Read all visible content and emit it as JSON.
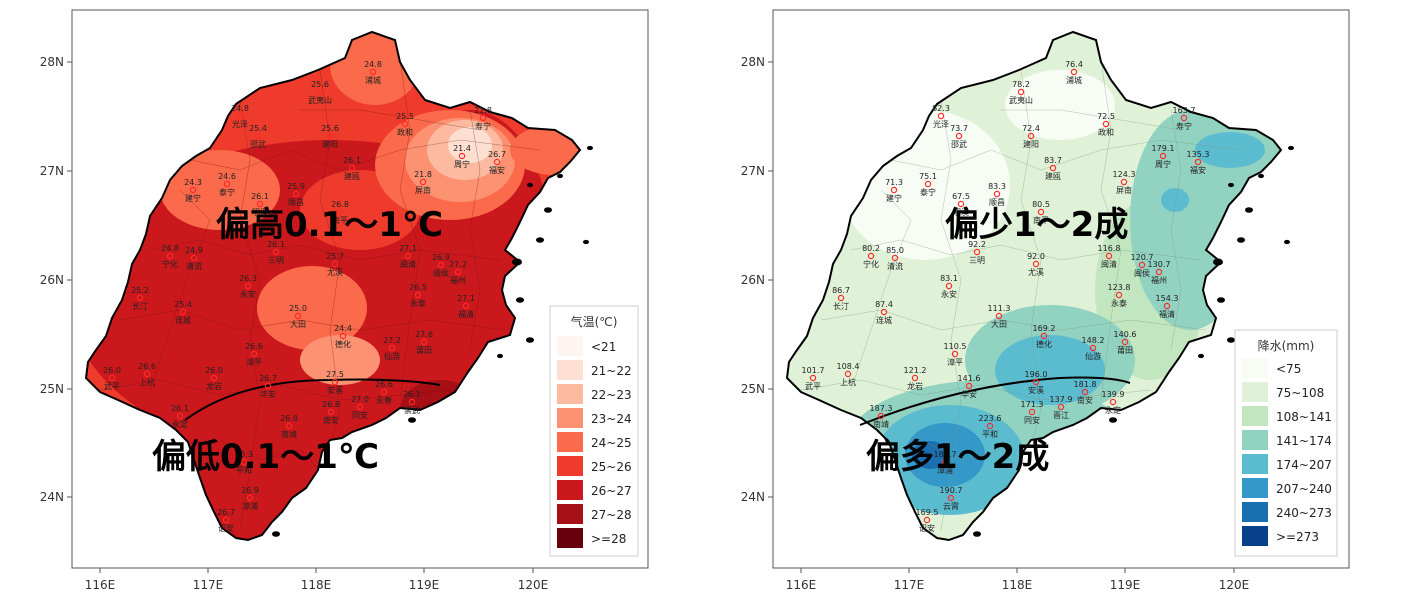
{
  "panels": [
    {
      "id": "temp",
      "legend_title": "气温(℃)",
      "legend": [
        {
          "label": "<21",
          "color": "#fff5f0"
        },
        {
          "label": "21~22",
          "color": "#fee0d2"
        },
        {
          "label": "22~23",
          "color": "#fcbba1"
        },
        {
          "label": "23~24",
          "color": "#fc9272"
        },
        {
          "label": "24~25",
          "color": "#fb6a4a"
        },
        {
          "label": "25~26",
          "color": "#ef3b2c"
        },
        {
          "label": "26~27",
          "color": "#cb181d"
        },
        {
          "label": "27~28",
          "color": "#a50f15"
        },
        {
          "label": ">=28",
          "color": "#67000d"
        }
      ],
      "annotations": [
        "偏高0.1～1℃",
        "偏低0.1～1℃"
      ],
      "x_ticks": [
        "116E",
        "117E",
        "118E",
        "119E",
        "120E"
      ],
      "y_ticks": [
        "28N",
        "27N",
        "26N",
        "25N",
        "24N"
      ],
      "stations": [
        {
          "v": "24.8",
          "n": "浦城"
        },
        {
          "v": "25.6",
          "n": "武夷山"
        },
        {
          "v": "24.8",
          "n": "光泽"
        },
        {
          "v": "25.4",
          "n": "邵武"
        },
        {
          "v": "25.6",
          "n": "建阳"
        },
        {
          "v": "25.5",
          "n": "政和"
        },
        {
          "v": "21.8",
          "n": "寿宁"
        },
        {
          "v": "21.4",
          "n": "周宁"
        },
        {
          "v": "26.7",
          "n": "福安"
        },
        {
          "v": "26.1",
          "n": "建瓯"
        },
        {
          "v": "21.8",
          "n": "屏南"
        },
        {
          "v": "24.3",
          "n": "建宁"
        },
        {
          "v": "24.6",
          "n": "泰宁"
        },
        {
          "v": "26.1",
          "n": "明溪"
        },
        {
          "v": "25.9",
          "n": "顺昌"
        },
        {
          "v": "26.8",
          "n": "南平"
        },
        {
          "v": "24.8",
          "n": "宁化"
        },
        {
          "v": "24.9",
          "n": "清流"
        },
        {
          "v": "26.1",
          "n": "三明"
        },
        {
          "v": "25.7",
          "n": "尤溪"
        },
        {
          "v": "27.1",
          "n": "闽清"
        },
        {
          "v": "26.9",
          "n": "闽侯"
        },
        {
          "v": "27.2",
          "n": "福州"
        },
        {
          "v": "26.3",
          "n": "永安"
        },
        {
          "v": "26.5",
          "n": "永泰"
        },
        {
          "v": "25.2",
          "n": "长汀"
        },
        {
          "v": "25.4",
          "n": "连城"
        },
        {
          "v": "25.0",
          "n": "大田"
        },
        {
          "v": "24.4",
          "n": "德化"
        },
        {
          "v": "27.1",
          "n": "福清"
        },
        {
          "v": "27.2",
          "n": "仙游"
        },
        {
          "v": "27.6",
          "n": "莆田"
        },
        {
          "v": "26.0",
          "n": "武平"
        },
        {
          "v": "26.6",
          "n": "上杭"
        },
        {
          "v": "26.0",
          "n": "龙岩"
        },
        {
          "v": "26.6",
          "n": "漳平"
        },
        {
          "v": "26.7",
          "n": "华安"
        },
        {
          "v": "27.5",
          "n": "安溪"
        },
        {
          "v": "26.6",
          "n": "永春"
        },
        {
          "v": "26.8",
          "n": "南安"
        },
        {
          "v": "27.0",
          "n": "同安"
        },
        {
          "v": "26.1",
          "n": "崇武"
        },
        {
          "v": "26.1",
          "n": "永定"
        },
        {
          "v": "26.8",
          "n": "南靖"
        },
        {
          "v": "26.3",
          "n": "平和"
        },
        {
          "v": "26.9",
          "n": "漳浦"
        },
        {
          "v": "26.7",
          "n": "诏安"
        }
      ]
    },
    {
      "id": "precip",
      "legend_title": "降水(mm)",
      "legend": [
        {
          "label": "<75",
          "color": "#f7fcf5"
        },
        {
          "label": "75~108",
          "color": "#dff2d8"
        },
        {
          "label": "108~141",
          "color": "#c2e6c0"
        },
        {
          "label": "141~174",
          "color": "#92d2c0"
        },
        {
          "label": "174~207",
          "color": "#5bbcd0"
        },
        {
          "label": "207~240",
          "color": "#3498c8"
        },
        {
          "label": "240~273",
          "color": "#1a6fb0"
        },
        {
          "label": ">=273",
          "color": "#08408a"
        }
      ],
      "annotations": [
        "偏少1～2成",
        "偏多1～2成"
      ],
      "x_ticks": [
        "116E",
        "117E",
        "118E",
        "119E",
        "120E"
      ],
      "y_ticks": [
        "28N",
        "27N",
        "26N",
        "25N",
        "24N"
      ],
      "stations": [
        {
          "v": "76.4",
          "n": "浦城"
        },
        {
          "v": "78.2",
          "n": "武夷山"
        },
        {
          "v": "82.3",
          "n": "光泽"
        },
        {
          "v": "73.7",
          "n": "邵武"
        },
        {
          "v": "72.4",
          "n": "建阳"
        },
        {
          "v": "72.5",
          "n": "政和"
        },
        {
          "v": "163.7",
          "n": "寿宁"
        },
        {
          "v": "179.1",
          "n": "周宁"
        },
        {
          "v": "135.3",
          "n": "福安"
        },
        {
          "v": "83.7",
          "n": "建瓯"
        },
        {
          "v": "124.3",
          "n": "屏南"
        },
        {
          "v": "71.3",
          "n": "建宁"
        },
        {
          "v": "75.1",
          "n": "泰宁"
        },
        {
          "v": "67.5",
          "n": "明溪"
        },
        {
          "v": "83.3",
          "n": "顺昌"
        },
        {
          "v": "80.5",
          "n": "南平"
        },
        {
          "v": "80.2",
          "n": "宁化"
        },
        {
          "v": "85.0",
          "n": "清流"
        },
        {
          "v": "92.2",
          "n": "三明"
        },
        {
          "v": "92.0",
          "n": "尤溪"
        },
        {
          "v": "116.8",
          "n": "闽清"
        },
        {
          "v": "120.7",
          "n": "闽侯"
        },
        {
          "v": "130.7",
          "n": "福州"
        },
        {
          "v": "83.1",
          "n": "永安"
        },
        {
          "v": "123.8",
          "n": "永泰"
        },
        {
          "v": "86.7",
          "n": "长汀"
        },
        {
          "v": "87.4",
          "n": "连城"
        },
        {
          "v": "111.3",
          "n": "大田"
        },
        {
          "v": "169.2",
          "n": "德化"
        },
        {
          "v": "154.3",
          "n": "福清"
        },
        {
          "v": "148.2",
          "n": "仙游"
        },
        {
          "v": "140.6",
          "n": "莆田"
        },
        {
          "v": "101.7",
          "n": "武平"
        },
        {
          "v": "108.4",
          "n": "上杭"
        },
        {
          "v": "121.2",
          "n": "龙岩"
        },
        {
          "v": "110.5",
          "n": "漳平"
        },
        {
          "v": "141.6",
          "n": "华安"
        },
        {
          "v": "196.0",
          "n": "安溪"
        },
        {
          "v": "181.8",
          "n": "南安"
        },
        {
          "v": "171.3",
          "n": "同安"
        },
        {
          "v": "137.9",
          "n": "晋江"
        },
        {
          "v": "139.9",
          "n": "永定"
        },
        {
          "v": "187.3",
          "n": "南靖"
        },
        {
          "v": "223.6",
          "n": "平和"
        },
        {
          "v": "182.7",
          "n": "漳浦"
        },
        {
          "v": "190.7",
          "n": "云霄"
        },
        {
          "v": "169.5",
          "n": "诏安"
        }
      ]
    }
  ]
}
